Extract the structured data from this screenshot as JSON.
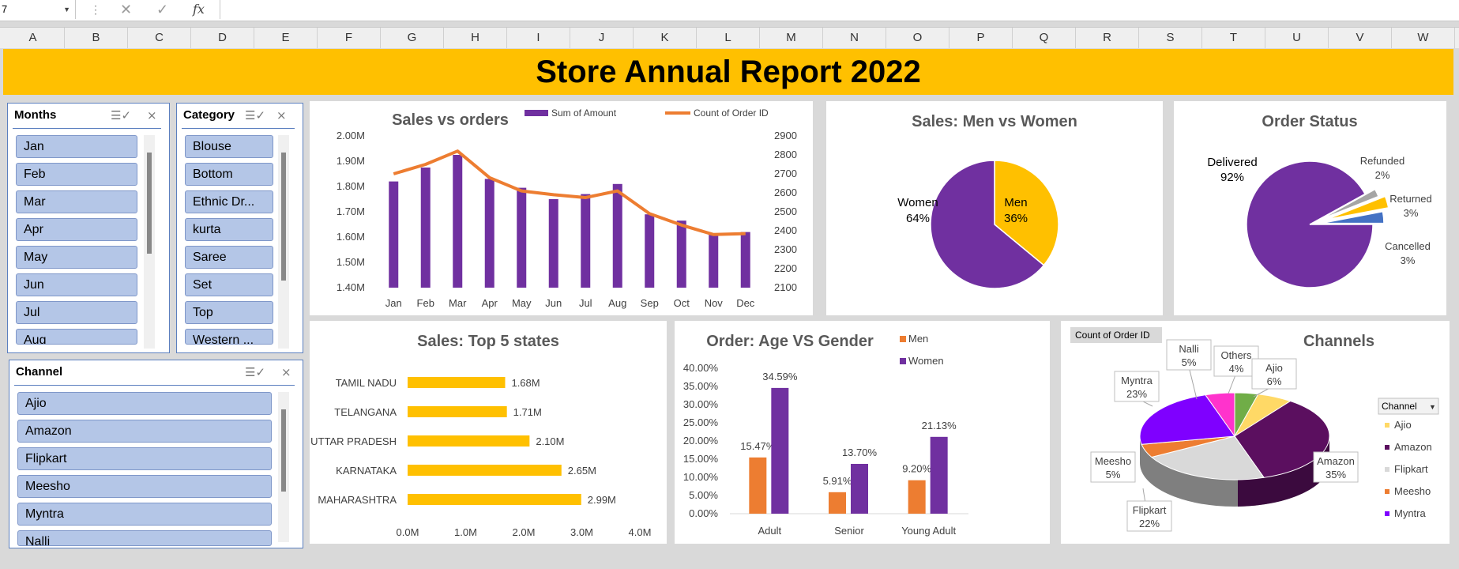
{
  "formula_bar": {
    "name_box": "7",
    "fx": "fx"
  },
  "columns": [
    "A",
    "B",
    "C",
    "D",
    "E",
    "F",
    "G",
    "H",
    "I",
    "J",
    "K",
    "L",
    "M",
    "N",
    "O",
    "P",
    "Q",
    "R",
    "S",
    "T",
    "U",
    "V",
    "W"
  ],
  "banner": {
    "title": "Store Annual Report 2022"
  },
  "slicers": {
    "months": {
      "title": "Months",
      "items": [
        "Jan",
        "Feb",
        "Mar",
        "Apr",
        "May",
        "Jun",
        "Jul",
        "Aug"
      ]
    },
    "category": {
      "title": "Category",
      "items": [
        "Blouse",
        "Bottom",
        "Ethnic Dr...",
        "kurta",
        "Saree",
        "Set",
        "Top",
        "Western ..."
      ]
    },
    "channel": {
      "title": "Channel",
      "items": [
        "Ajio",
        "Amazon",
        "Flipkart",
        "Meesho",
        "Myntra",
        "Nalli"
      ]
    }
  },
  "colors": {
    "purple": "#7030a0",
    "orange": "#ed7d31",
    "gold": "#ffc000",
    "banner": "#ffc000"
  },
  "chart_data": [
    {
      "type": "bar",
      "title": "Sales vs orders",
      "categories": [
        "Jan",
        "Feb",
        "Mar",
        "Apr",
        "May",
        "Jun",
        "Jul",
        "Aug",
        "Sep",
        "Oct",
        "Nov",
        "Dec"
      ],
      "series": [
        {
          "name": "Sum of Amount",
          "kind": "bar",
          "axis": "left",
          "color": "#7030a0",
          "values": [
            1.82,
            1.875,
            1.925,
            1.83,
            1.795,
            1.75,
            1.77,
            1.81,
            1.69,
            1.665,
            1.61,
            1.62
          ]
        },
        {
          "name": "Count of Order ID",
          "kind": "line",
          "axis": "right",
          "color": "#ed7d31",
          "values": [
            2700,
            2750,
            2820,
            2680,
            2610,
            2590,
            2575,
            2610,
            2490,
            2430,
            2380,
            2385
          ]
        }
      ],
      "y_left": {
        "min": 1.4,
        "max": 2.0,
        "ticks": [
          "1.40M",
          "1.50M",
          "1.60M",
          "1.70M",
          "1.80M",
          "1.90M",
          "2.00M"
        ]
      },
      "y_right": {
        "min": 2100,
        "max": 2900,
        "ticks": [
          "2100",
          "2200",
          "2300",
          "2400",
          "2500",
          "2600",
          "2700",
          "2800",
          "2900"
        ]
      },
      "legend": "top"
    },
    {
      "type": "pie",
      "title": "Sales: Men vs Women",
      "slices": [
        {
          "label": "Men",
          "pct": "36%",
          "value": 36,
          "color": "#ffc000"
        },
        {
          "label": "Women",
          "pct": "64%",
          "value": 64,
          "color": "#7030a0"
        }
      ]
    },
    {
      "type": "pie",
      "title": "Order Status",
      "slices": [
        {
          "label": "Delivered",
          "pct": "92%",
          "value": 92,
          "color": "#7030a0"
        },
        {
          "label": "Refunded",
          "pct": "2%",
          "value": 2,
          "color": "#a5a5a5"
        },
        {
          "label": "Returned",
          "pct": "3%",
          "value": 3,
          "color": "#ffc000"
        },
        {
          "label": "Cancelled",
          "pct": "3%",
          "value": 3,
          "color": "#4472c4"
        }
      ]
    },
    {
      "type": "bar",
      "orientation": "horizontal",
      "title": "Sales: Top 5 states",
      "categories": [
        "TAMIL NADU",
        "TELANGANA",
        "UTTAR PRADESH",
        "KARNATAKA",
        "MAHARASHTRA"
      ],
      "values": [
        1.68,
        1.71,
        2.1,
        2.65,
        2.99
      ],
      "data_labels": [
        "1.68M",
        "1.71M",
        "2.10M",
        "2.65M",
        "2.99M"
      ],
      "x_ticks": [
        "0.0M",
        "1.0M",
        "2.0M",
        "3.0M",
        "4.0M"
      ],
      "xlim": [
        0,
        4
      ],
      "color": "#ffc000"
    },
    {
      "type": "bar",
      "title": "Order: Age VS Gender",
      "categories": [
        "Adult",
        "Senior",
        "Young Adult"
      ],
      "series": [
        {
          "name": "Men",
          "color": "#ed7d31",
          "values": [
            15.47,
            5.91,
            9.2
          ],
          "labels": [
            "15.47%",
            "5.91%",
            "9.20%"
          ]
        },
        {
          "name": "Women",
          "color": "#7030a0",
          "values": [
            34.59,
            13.7,
            21.13
          ],
          "labels": [
            "34.59%",
            "13.70%",
            "21.13%"
          ]
        }
      ],
      "ylim": [
        0,
        40
      ],
      "y_ticks": [
        "0.00%",
        "5.00%",
        "10.00%",
        "15.00%",
        "20.00%",
        "25.00%",
        "30.00%",
        "35.00%",
        "40.00%"
      ],
      "legend": "top-right"
    },
    {
      "type": "pie",
      "title": "Channels",
      "field_button": "Count of Order ID",
      "legend_title": "Channel",
      "legend": [
        "Ajio",
        "Amazon",
        "Flipkart",
        "Meesho",
        "Myntra"
      ],
      "slices": [
        {
          "label": "Ajio",
          "pct": "6%",
          "value": 6,
          "color": "#ffd966"
        },
        {
          "label": "Amazon",
          "pct": "35%",
          "value": 35,
          "color": "#5b0f5f"
        },
        {
          "label": "Flipkart",
          "pct": "22%",
          "value": 22,
          "color": "#d9d9d9"
        },
        {
          "label": "Meesho",
          "pct": "5%",
          "value": 5,
          "color": "#ed7d31"
        },
        {
          "label": "Myntra",
          "pct": "23%",
          "value": 23,
          "color": "#7f00ff"
        },
        {
          "label": "Nalli",
          "pct": "5%",
          "value": 5,
          "color": "#ff33cc"
        },
        {
          "label": "Others",
          "pct": "4%",
          "value": 4,
          "color": "#70ad47"
        }
      ]
    }
  ]
}
